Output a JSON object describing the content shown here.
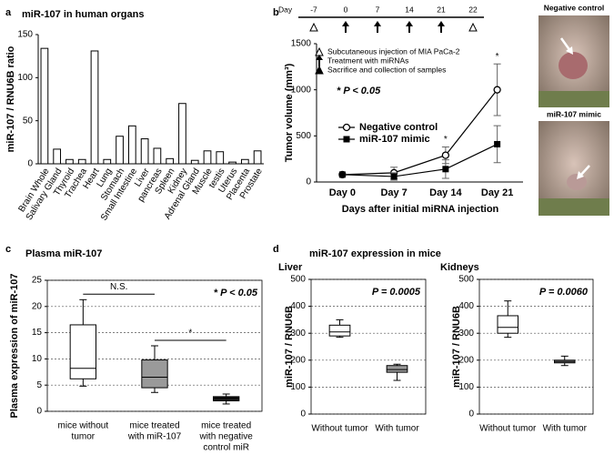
{
  "chart_data": [
    {
      "type": "bar",
      "panel_label": "a",
      "title": "miR-107 in human organs",
      "ylabel": "miR-107 / RNU6B ratio",
      "categories": [
        "Brain Whole",
        "Salivary Gland",
        "Thyroid",
        "Trachea",
        "Heart",
        "Lung",
        "Stomach",
        "Small Intestine",
        "Liver",
        "pancreas",
        "Spleen",
        "Kidney",
        "Adrenal Gland",
        "Muscle",
        "testis",
        "Uterus",
        "Placenta",
        "Prostate"
      ],
      "values": [
        134,
        17,
        5,
        5,
        131,
        5,
        32,
        44,
        29,
        18,
        6,
        70,
        4,
        15,
        14,
        2,
        5,
        15
      ],
      "color": "#ffffff",
      "ylim": [
        0,
        150
      ],
      "yticks": [
        0,
        50,
        100,
        150
      ],
      "grid": false
    },
    {
      "type": "line",
      "panel_label": "b",
      "timeline": {
        "label": "Day",
        "days": [
          -7,
          0,
          7,
          14,
          21,
          22
        ],
        "markers": [
          "triangle-open",
          "arrow",
          "arrow",
          "arrow",
          "arrow",
          "triangle-open"
        ],
        "legend": [
          {
            "marker": "triangle-open",
            "text": "Subcutaneous injection of MIA PaCa-2"
          },
          {
            "marker": "arrow",
            "text": "Treatment with miRNAs"
          },
          {
            "marker": "triangle-filled",
            "text": "Sacrifice and collection of samples"
          }
        ]
      },
      "ylabel": "Tumor volume (mm³)",
      "xlabel": "Days after initial miRNA injection",
      "categories": [
        "Day 0",
        "Day 7",
        "Day 14",
        "Day 21"
      ],
      "series": [
        {
          "name": "Negative control",
          "color": "#000000",
          "marker": "circle-open",
          "values": [
            80,
            100,
            290,
            1000
          ],
          "errors": [
            10,
            60,
            90,
            280
          ]
        },
        {
          "name": "miR-107 mimic",
          "color": "#000000",
          "marker": "square",
          "values": [
            80,
            60,
            140,
            410
          ],
          "errors": [
            10,
            40,
            100,
            200
          ]
        }
      ],
      "significance": [
        null,
        null,
        "*",
        "*"
      ],
      "annotation": "* P < 0.05",
      "ylim": [
        0,
        1500
      ],
      "yticks": [
        0,
        500,
        1000,
        1500
      ],
      "grid": false,
      "photo_labels": [
        "Negative control",
        "miR-107 mimic"
      ]
    },
    {
      "type": "box",
      "panel_label": "c",
      "title": "Plasma miR-107",
      "ylabel": "Plasma expression of miR-107",
      "categories": [
        [
          "mice without",
          "tumor"
        ],
        [
          "mice treated",
          "with miR-107"
        ],
        [
          "mice treated",
          "with negative",
          "control miR"
        ]
      ],
      "boxes": [
        {
          "min": 4.8,
          "q1": 6.2,
          "median": 8.2,
          "q3": 16.5,
          "max": 21.3
        },
        {
          "min": 3.6,
          "q1": 4.5,
          "median": 6.5,
          "q3": 9.8,
          "max": 12.5
        },
        {
          "min": 1.4,
          "q1": 2.0,
          "median": 2.5,
          "q3": 2.8,
          "max": 3.3
        }
      ],
      "colors": [
        "#ffffff",
        "#9a9a9a",
        "#1a1a1a"
      ],
      "comparisons": [
        {
          "label": "N.S.",
          "between": [
            0,
            1
          ]
        },
        {
          "label": "*",
          "between": [
            1,
            2
          ]
        }
      ],
      "annotation": "* P < 0.05",
      "ylim": [
        0,
        25
      ],
      "yticks": [
        0,
        5,
        10,
        15,
        20,
        25
      ],
      "grid": true
    },
    {
      "type": "box",
      "panel_label": "d",
      "title": "miR-107 expression  in mice",
      "subtitle": "Liver",
      "ylabel": "miR-107 / RNU6B",
      "categories": [
        [
          "Without tumor"
        ],
        [
          "With tumor"
        ]
      ],
      "boxes": [
        {
          "min": 285,
          "q1": 290,
          "median": 305,
          "q3": 330,
          "max": 350
        },
        {
          "min": 125,
          "q1": 155,
          "median": 165,
          "q3": 180,
          "max": 185
        }
      ],
      "colors": [
        "#ffffff",
        "#9a9a9a"
      ],
      "annotation": "P = 0.0005",
      "ylim": [
        0,
        500
      ],
      "yticks": [
        0,
        100,
        200,
        300,
        400,
        500
      ],
      "grid": true
    },
    {
      "type": "box",
      "subtitle": "Kidneys",
      "ylabel": "miR-107 / RNU6B",
      "categories": [
        [
          "Without tumor"
        ],
        [
          "With tumor"
        ]
      ],
      "boxes": [
        {
          "min": 285,
          "q1": 300,
          "median": 322,
          "q3": 365,
          "max": 420
        },
        {
          "min": 180,
          "q1": 190,
          "median": 195,
          "q3": 200,
          "max": 215
        }
      ],
      "colors": [
        "#ffffff",
        "#9a9a9a"
      ],
      "annotation": "P = 0.0060",
      "ylim": [
        0,
        500
      ],
      "yticks": [
        0,
        100,
        200,
        300,
        400,
        500
      ],
      "grid": true
    }
  ]
}
